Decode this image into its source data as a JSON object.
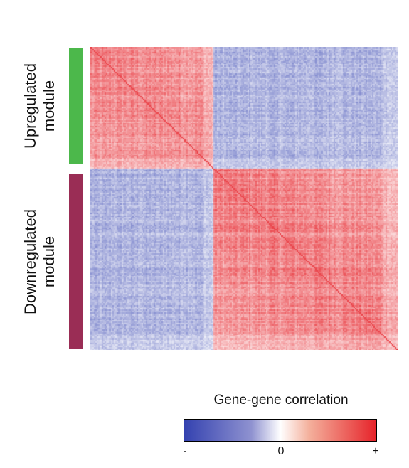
{
  "chart_data": {
    "type": "heatmap",
    "title": "",
    "xlabel": "",
    "ylabel": "",
    "modules": [
      {
        "name": "Upregulated module",
        "label": "Upregulated\nmodule",
        "color": "#4cb84b",
        "size_fraction": 0.4
      },
      {
        "name": "Downregulated module",
        "label": "Downregulated\nmodule",
        "color": "#9a2d55",
        "size_fraction": 0.6
      }
    ],
    "block_correlation": {
      "within_upregulated": 0.55,
      "within_downregulated": 0.6,
      "between_modules": -0.45,
      "diagonal": 1.0
    },
    "legend": {
      "title": "Gene-gene correlation",
      "ticks": [
        "-",
        "0",
        "+"
      ],
      "colors": [
        "#3442b0",
        "#ffffff",
        "#e6232a"
      ]
    }
  }
}
